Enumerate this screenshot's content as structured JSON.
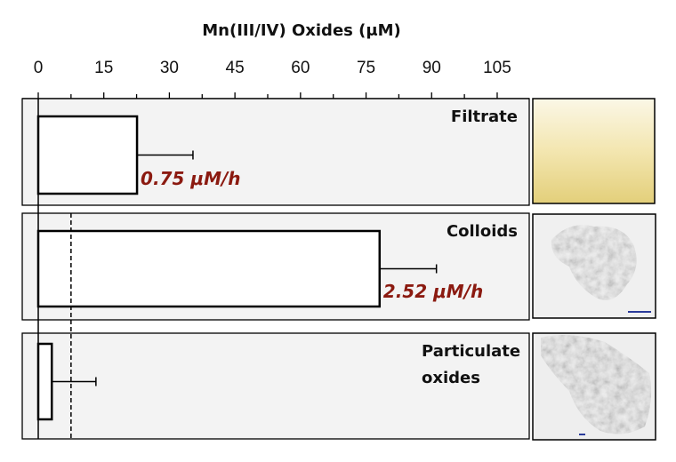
{
  "chart_data": {
    "type": "bar",
    "orientation": "horizontal",
    "title": "",
    "xlabel": "Mn(III/IV) Oxides (μM)",
    "xlim": [
      0,
      108
    ],
    "xticks": [
      0,
      15,
      30,
      45,
      60,
      75,
      90,
      105
    ],
    "x_axis_position": "top",
    "grid": false,
    "categories": [
      "Filtrate",
      "Colloids",
      "Particulate oxides"
    ],
    "category_lines": [
      [
        "Filtrate"
      ],
      [
        "Colloids"
      ],
      [
        "Particulate",
        "oxides"
      ]
    ],
    "values": [
      22.6,
      78.1,
      3.1
    ],
    "error_plus": [
      12.8,
      13.0,
      10.1
    ],
    "rate_labels": [
      "0.75 μM/h",
      "2.52 μM/h",
      ""
    ],
    "reference_line": {
      "x": 7.5,
      "style": "dashed"
    },
    "colors": {
      "bar_fill": "#ffffff",
      "bar_edge": "#000000",
      "panel": "#f3f3f3",
      "rate_text": "#8b1a10",
      "scale_bar": "#2a3b9a"
    },
    "images": [
      "yellow filtrate solution",
      "colloid micrograph",
      "particulate oxide micrograph"
    ]
  }
}
